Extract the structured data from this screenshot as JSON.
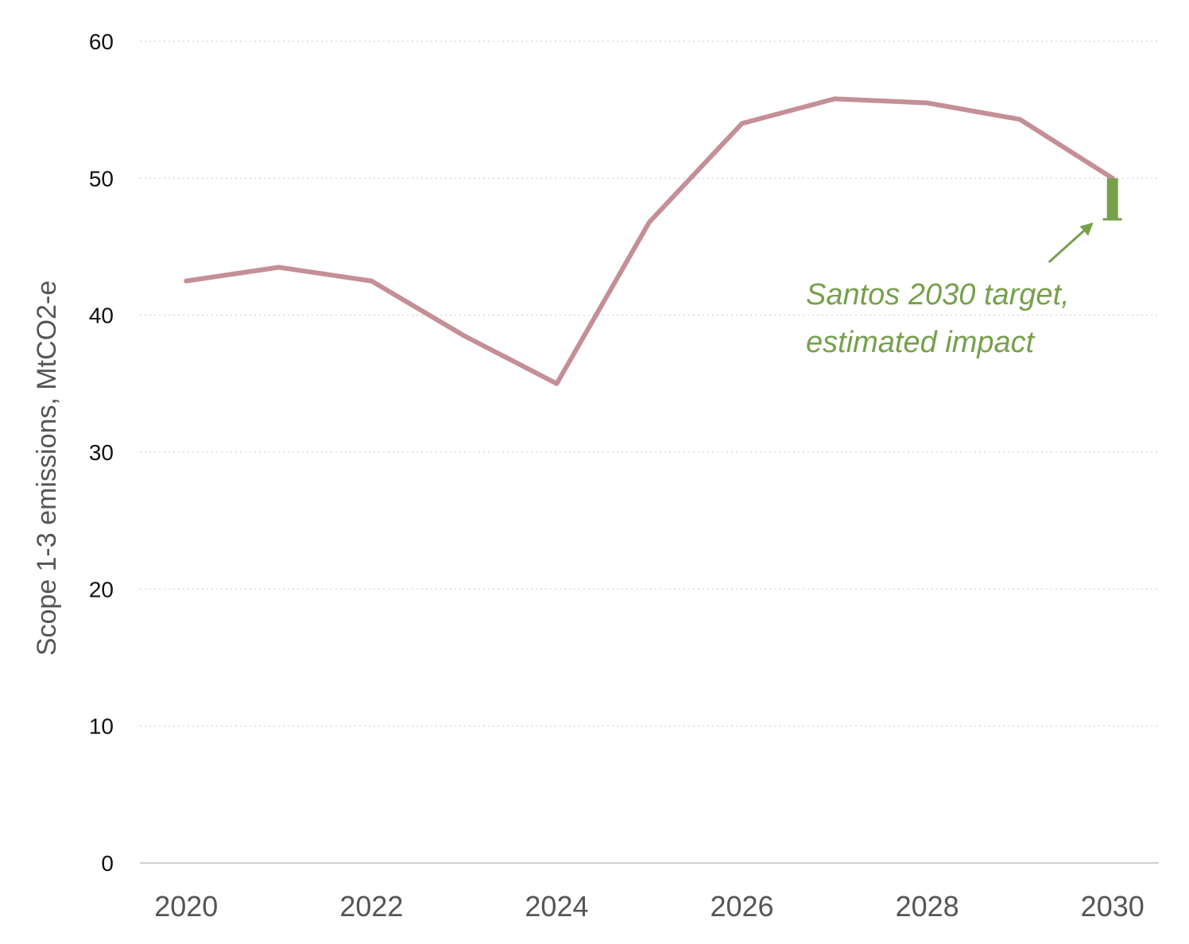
{
  "chart_data": {
    "type": "line",
    "xlabel": "",
    "ylabel": "Scope 1-3 emissions, MtCO2-e",
    "xlim": [
      2019.5,
      2030.5
    ],
    "ylim": [
      0,
      60
    ],
    "x_ticks": [
      "2020",
      "2022",
      "2024",
      "2026",
      "2028",
      "2030"
    ],
    "y_ticks": [
      "0",
      "10",
      "20",
      "30",
      "40",
      "50",
      "60"
    ],
    "grid": true,
    "series": [
      {
        "x": [
          2020,
          2021,
          2022,
          2023,
          2024,
          2025,
          2026,
          2027,
          2028,
          2029,
          2030
        ],
        "values": [
          42.5,
          43.5,
          42.5,
          38.5,
          35.0,
          46.8,
          54.0,
          55.8,
          55.5,
          54.3,
          50.0
        ],
        "color": "#c48f96"
      }
    ],
    "annotation": {
      "line1": "Santos 2030 target,",
      "line2": "estimated impact",
      "x": 2030,
      "from": 50.0,
      "to": 47.0,
      "color": "#77a04b"
    }
  }
}
